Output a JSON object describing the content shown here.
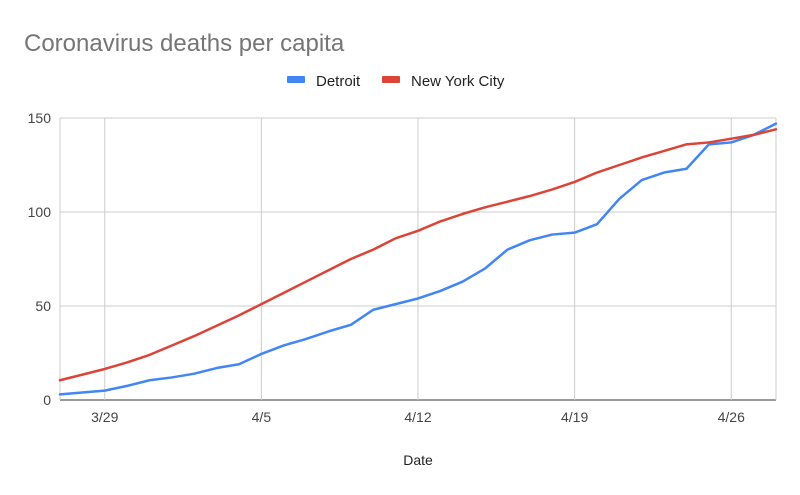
{
  "chart_data": {
    "type": "line",
    "title": "Coronavirus deaths per capita",
    "xlabel": "Date",
    "ylabel": "",
    "ylim": [
      0,
      150
    ],
    "yticks": [
      0,
      50,
      100,
      150
    ],
    "x_tick_labels": [
      "3/29",
      "4/5",
      "4/12",
      "4/19",
      "4/26"
    ],
    "legend_position": "top-center",
    "grid": true,
    "x": [
      "3/27",
      "3/28",
      "3/29",
      "3/30",
      "3/31",
      "4/1",
      "4/2",
      "4/3",
      "4/4",
      "4/5",
      "4/6",
      "4/7",
      "4/8",
      "4/9",
      "4/10",
      "4/11",
      "4/12",
      "4/13",
      "4/14",
      "4/15",
      "4/16",
      "4/17",
      "4/18",
      "4/19",
      "4/20",
      "4/21",
      "4/22",
      "4/23",
      "4/24",
      "4/25",
      "4/26",
      "4/27",
      "4/28"
    ],
    "series": [
      {
        "name": "Detroit",
        "color": "#4285f4",
        "values": [
          3,
          4,
          5,
          7.5,
          10.5,
          12,
          14,
          17,
          19,
          24.5,
          29,
          32.5,
          36.5,
          40,
          48,
          51,
          54,
          58,
          63,
          70,
          80,
          85,
          88,
          89,
          93.5,
          107,
          117,
          121,
          123,
          136,
          137,
          141,
          147
        ]
      },
      {
        "name": "New York City",
        "color": "#db4437",
        "values": [
          10.5,
          13.5,
          16.5,
          20,
          24,
          29,
          34,
          39.5,
          45,
          51,
          57,
          63,
          69,
          75,
          80,
          86,
          90,
          95,
          99,
          102.5,
          105.5,
          108.5,
          112,
          116,
          121,
          125,
          129,
          132.5,
          136,
          137,
          139,
          141,
          144
        ]
      }
    ]
  }
}
